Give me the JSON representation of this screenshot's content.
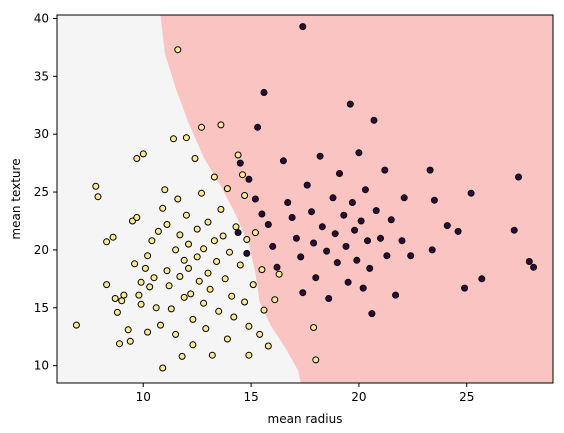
{
  "chart_data": {
    "type": "scatter",
    "title": "",
    "xlabel": "mean radius",
    "ylabel": "mean texture",
    "xlim": [
      6.0,
      29.0
    ],
    "ylim": [
      8.5,
      40.3
    ],
    "xticks": [
      10,
      15,
      20,
      25
    ],
    "yticks": [
      10,
      15,
      20,
      25,
      30,
      35,
      40
    ],
    "grid": false,
    "legend": "none",
    "decision_regions": {
      "left_color": "#f5f5f5",
      "right_color": "#fac4c2",
      "boundary": [
        [
          10.8,
          40.3
        ],
        [
          11.0,
          37.0
        ],
        [
          11.5,
          34.0
        ],
        [
          12.1,
          31.0
        ],
        [
          12.8,
          28.0
        ],
        [
          13.6,
          25.5
        ],
        [
          14.3,
          23.0
        ],
        [
          14.9,
          20.5
        ],
        [
          15.2,
          18.0
        ],
        [
          15.4,
          15.5
        ],
        [
          15.9,
          13.5
        ],
        [
          16.6,
          11.5
        ],
        [
          17.2,
          9.5
        ],
        [
          17.3,
          8.5
        ]
      ]
    },
    "series": [
      {
        "color": "#fde992",
        "points": [
          [
            7.8,
            25.5
          ],
          [
            7.9,
            24.6
          ],
          [
            6.9,
            13.5
          ],
          [
            8.3,
            20.7
          ],
          [
            8.3,
            17.0
          ],
          [
            8.6,
            21.1
          ],
          [
            8.7,
            15.8
          ],
          [
            8.8,
            14.6
          ],
          [
            8.9,
            11.9
          ],
          [
            9.0,
            15.6
          ],
          [
            9.1,
            16.1
          ],
          [
            9.3,
            13.1
          ],
          [
            9.4,
            12.1
          ],
          [
            9.5,
            22.5
          ],
          [
            9.6,
            18.8
          ],
          [
            9.7,
            22.8
          ],
          [
            9.7,
            27.9
          ],
          [
            9.8,
            16.1
          ],
          [
            9.9,
            17.2
          ],
          [
            9.9,
            15.3
          ],
          [
            10.0,
            28.3
          ],
          [
            10.1,
            18.4
          ],
          [
            10.2,
            19.5
          ],
          [
            10.2,
            12.9
          ],
          [
            10.3,
            16.8
          ],
          [
            10.4,
            20.8
          ],
          [
            10.5,
            17.6
          ],
          [
            10.6,
            15.0
          ],
          [
            10.7,
            21.6
          ],
          [
            10.8,
            13.5
          ],
          [
            10.9,
            9.8
          ],
          [
            10.9,
            23.6
          ],
          [
            11.0,
            25.2
          ],
          [
            11.1,
            22.2
          ],
          [
            11.1,
            18.2
          ],
          [
            11.2,
            16.9
          ],
          [
            11.3,
            14.9
          ],
          [
            11.4,
            29.6
          ],
          [
            11.5,
            20.0
          ],
          [
            11.5,
            12.7
          ],
          [
            11.6,
            37.3
          ],
          [
            11.6,
            24.4
          ],
          [
            11.7,
            21.3
          ],
          [
            11.7,
            17.7
          ],
          [
            11.8,
            10.8
          ],
          [
            11.9,
            19.1
          ],
          [
            11.9,
            15.9
          ],
          [
            12.0,
            29.7
          ],
          [
            12.0,
            23.0
          ],
          [
            12.1,
            20.5
          ],
          [
            12.1,
            18.4
          ],
          [
            12.2,
            16.2
          ],
          [
            12.3,
            14.0
          ],
          [
            12.3,
            11.8
          ],
          [
            12.4,
            27.9
          ],
          [
            12.5,
            21.8
          ],
          [
            12.5,
            19.4
          ],
          [
            12.6,
            17.3
          ],
          [
            12.7,
            30.6
          ],
          [
            12.7,
            24.9
          ],
          [
            12.8,
            20.1
          ],
          [
            12.8,
            15.4
          ],
          [
            12.9,
            13.2
          ],
          [
            13.0,
            22.4
          ],
          [
            13.0,
            18.0
          ],
          [
            13.1,
            16.6
          ],
          [
            13.2,
            10.9
          ],
          [
            13.3,
            26.3
          ],
          [
            13.3,
            20.8
          ],
          [
            13.4,
            19.0
          ],
          [
            13.5,
            14.7
          ],
          [
            13.6,
            30.8
          ],
          [
            13.6,
            23.5
          ],
          [
            13.7,
            21.2
          ],
          [
            13.8,
            17.5
          ],
          [
            13.9,
            12.3
          ],
          [
            13.9,
            25.3
          ],
          [
            14.0,
            19.8
          ],
          [
            14.1,
            16.0
          ],
          [
            14.2,
            14.2
          ],
          [
            14.3,
            22.0
          ],
          [
            14.4,
            28.2
          ],
          [
            14.5,
            18.7
          ],
          [
            14.6,
            26.5
          ],
          [
            14.7,
            24.7
          ],
          [
            14.7,
            15.5
          ],
          [
            14.8,
            20.9
          ],
          [
            14.9,
            13.4
          ],
          [
            14.9,
            10.9
          ],
          [
            15.1,
            17.0
          ],
          [
            15.2,
            21.5
          ],
          [
            15.4,
            12.7
          ],
          [
            15.5,
            18.3
          ],
          [
            15.6,
            14.8
          ],
          [
            15.8,
            11.7
          ],
          [
            16.1,
            15.7
          ],
          [
            16.3,
            17.9
          ],
          [
            17.9,
            13.3
          ],
          [
            18.0,
            10.5
          ]
        ]
      },
      {
        "color": "#2d0a3e",
        "points": [
          [
            17.4,
            39.3
          ],
          [
            15.6,
            33.6
          ],
          [
            15.3,
            30.6
          ],
          [
            14.5,
            27.5
          ],
          [
            14.9,
            26.1
          ],
          [
            15.2,
            24.4
          ],
          [
            15.5,
            23.1
          ],
          [
            14.4,
            21.5
          ],
          [
            14.8,
            19.7
          ],
          [
            15.8,
            22.2
          ],
          [
            16.0,
            20.3
          ],
          [
            16.2,
            18.5
          ],
          [
            16.5,
            27.7
          ],
          [
            16.7,
            24.1
          ],
          [
            16.9,
            22.8
          ],
          [
            17.1,
            21.0
          ],
          [
            17.3,
            19.4
          ],
          [
            17.4,
            16.3
          ],
          [
            17.6,
            25.6
          ],
          [
            17.8,
            23.3
          ],
          [
            17.9,
            20.6
          ],
          [
            18.0,
            17.6
          ],
          [
            18.2,
            28.1
          ],
          [
            18.3,
            22.0
          ],
          [
            18.5,
            19.9
          ],
          [
            18.6,
            15.8
          ],
          [
            18.8,
            24.5
          ],
          [
            18.9,
            21.4
          ],
          [
            19.0,
            18.9
          ],
          [
            19.1,
            26.6
          ],
          [
            19.3,
            23.0
          ],
          [
            19.4,
            20.3
          ],
          [
            19.5,
            17.2
          ],
          [
            19.6,
            32.6
          ],
          [
            19.7,
            24.1
          ],
          [
            19.8,
            21.7
          ],
          [
            19.9,
            19.1
          ],
          [
            20.0,
            28.4
          ],
          [
            20.1,
            22.5
          ],
          [
            20.2,
            16.7
          ],
          [
            20.3,
            25.2
          ],
          [
            20.4,
            20.8
          ],
          [
            20.5,
            18.4
          ],
          [
            20.6,
            14.5
          ],
          [
            20.7,
            31.2
          ],
          [
            20.8,
            23.4
          ],
          [
            21.0,
            21.0
          ],
          [
            21.2,
            26.9
          ],
          [
            21.3,
            19.5
          ],
          [
            21.5,
            22.6
          ],
          [
            21.7,
            16.1
          ],
          [
            22.0,
            20.8
          ],
          [
            22.1,
            24.5
          ],
          [
            22.4,
            19.5
          ],
          [
            23.3,
            26.9
          ],
          [
            23.5,
            24.3
          ],
          [
            23.4,
            20.0
          ],
          [
            24.1,
            22.1
          ],
          [
            24.6,
            21.6
          ],
          [
            24.9,
            16.7
          ],
          [
            25.2,
            24.9
          ],
          [
            25.7,
            17.5
          ],
          [
            27.2,
            21.7
          ],
          [
            27.4,
            26.3
          ],
          [
            27.9,
            19.0
          ],
          [
            28.1,
            18.5
          ]
        ]
      }
    ]
  }
}
